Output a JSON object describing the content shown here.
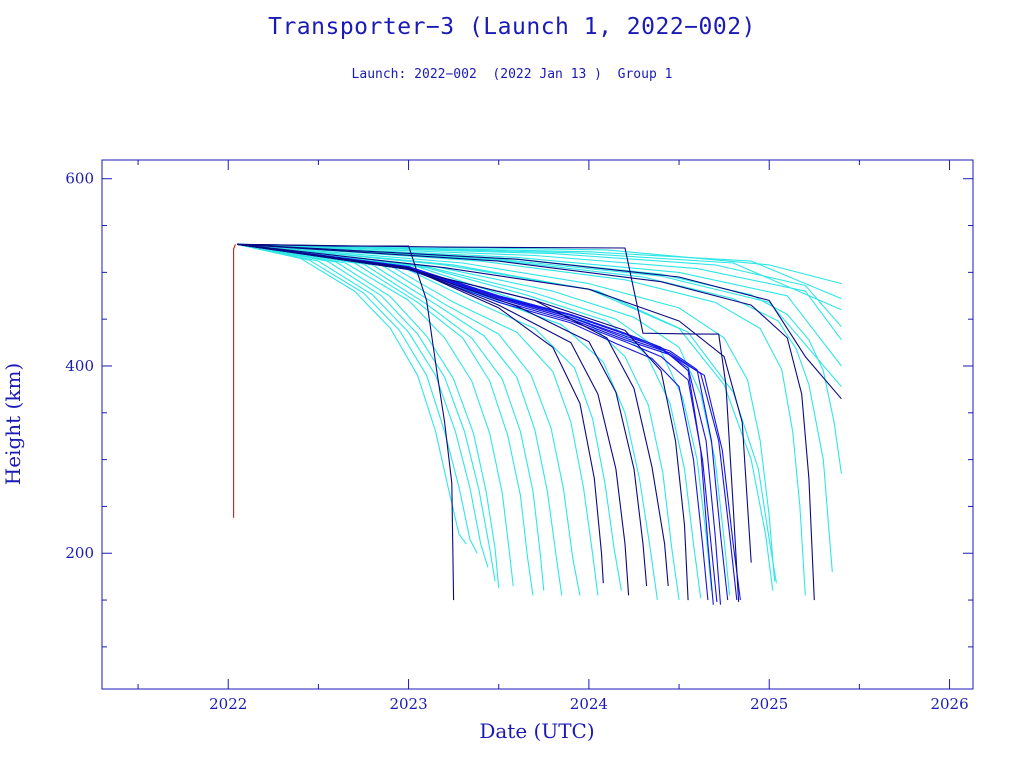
{
  "chart_data": {
    "type": "line",
    "title": "Transporter−3 (Launch 1, 2022−002)",
    "subtitle": "Launch: 2022−002  (2022 Jan 13 )  Group 1",
    "xlabel": "Date (UTC)",
    "ylabel": "Height (km)",
    "xlim": [
      2021.3,
      2026.13
    ],
    "ylim": [
      55,
      620
    ],
    "x_ticks": [
      2022,
      2023,
      2024,
      2025,
      2026
    ],
    "y_ticks": [
      200,
      400,
      600
    ],
    "x_tick_labels": [
      "2022",
      "2023",
      "2024",
      "2025",
      "2026"
    ],
    "y_tick_labels": [
      "200",
      "400",
      "600"
    ],
    "grid": false,
    "colors": {
      "frame": "#1a1ab4",
      "text": "#1a1ab4",
      "deployment": "#c81e1e",
      "group_light": "#2ee6e6",
      "group_dark": "#0a0a82",
      "group_blue": "#1414e6"
    },
    "series": [
      {
        "color": "#c81e1e",
        "x": [
          2022.03,
          2022.03,
          2022.04
        ],
        "y": [
          238,
          525,
          530
        ]
      },
      {
        "color": "#2ee6e6",
        "x": [
          2022.05,
          2022.4,
          2022.7,
          2022.9,
          2023.05,
          2023.15,
          2023.22,
          2023.28,
          2023.32
        ],
        "y": [
          530,
          515,
          480,
          440,
          390,
          330,
          270,
          220,
          210
        ]
      },
      {
        "color": "#2ee6e6",
        "x": [
          2022.05,
          2022.45,
          2022.75,
          2022.95,
          2023.1,
          2023.2,
          2023.28,
          2023.34,
          2023.38
        ],
        "y": [
          530,
          513,
          478,
          438,
          390,
          330,
          270,
          215,
          200
        ]
      },
      {
        "color": "#2ee6e6",
        "x": [
          2022.05,
          2022.5,
          2022.8,
          2023.0,
          2023.15,
          2023.26,
          2023.34,
          2023.4,
          2023.44
        ],
        "y": [
          530,
          512,
          476,
          436,
          390,
          330,
          270,
          210,
          185
        ]
      },
      {
        "color": "#2ee6e6",
        "x": [
          2022.05,
          2022.55,
          2022.85,
          2023.05,
          2023.2,
          2023.31,
          2023.39,
          2023.45,
          2023.48
        ],
        "y": [
          530,
          512,
          475,
          434,
          388,
          330,
          268,
          205,
          170
        ]
      },
      {
        "color": "#2ee6e6",
        "x": [
          2022.05,
          2022.6,
          2022.9,
          2023.1,
          2023.25,
          2023.36,
          2023.43,
          2023.48,
          2023.5
        ],
        "y": [
          530,
          511,
          474,
          432,
          386,
          328,
          266,
          205,
          163
        ]
      },
      {
        "color": "#2ee6e6",
        "x": [
          2022.05,
          2022.65,
          2023.0,
          2023.2,
          2023.35,
          2023.45,
          2023.52,
          2023.56,
          2023.58
        ],
        "y": [
          530,
          510,
          470,
          430,
          384,
          328,
          264,
          200,
          165
        ]
      },
      {
        "color": "#2ee6e6",
        "x": [
          2022.05,
          2022.7,
          2023.05,
          2023.3,
          2023.45,
          2023.55,
          2023.62,
          2023.66,
          2023.69
        ],
        "y": [
          530,
          510,
          468,
          430,
          384,
          326,
          262,
          195,
          155
        ]
      },
      {
        "color": "#2ee6e6",
        "x": [
          2022.05,
          2022.75,
          2023.1,
          2023.35,
          2023.52,
          2023.62,
          2023.69,
          2023.73,
          2023.75
        ],
        "y": [
          530,
          509,
          466,
          430,
          386,
          330,
          266,
          200,
          160
        ]
      },
      {
        "color": "#2ee6e6",
        "x": [
          2022.05,
          2022.8,
          2023.15,
          2023.42,
          2023.6,
          2023.7,
          2023.77,
          2023.82,
          2023.85
        ],
        "y": [
          530,
          508,
          466,
          432,
          388,
          332,
          266,
          195,
          155
        ]
      },
      {
        "color": "#2ee6e6",
        "x": [
          2022.05,
          2022.85,
          2023.2,
          2023.5,
          2023.68,
          2023.79,
          2023.86,
          2023.91,
          2023.95
        ],
        "y": [
          530,
          508,
          466,
          434,
          390,
          334,
          268,
          195,
          155
        ]
      },
      {
        "color": "#2ee6e6",
        "x": [
          2022.05,
          2022.9,
          2023.25,
          2023.6,
          2023.8,
          2023.9,
          2023.97,
          2024.02,
          2024.05
        ],
        "y": [
          530,
          507,
          468,
          436,
          394,
          340,
          270,
          200,
          155
        ]
      },
      {
        "color": "#2ee6e6",
        "x": [
          2022.05,
          2022.95,
          2023.35,
          2023.7,
          2023.92,
          2024.02,
          2024.09,
          2024.14,
          2024.18
        ],
        "y": [
          530,
          507,
          470,
          440,
          398,
          344,
          274,
          205,
          160
        ]
      },
      {
        "color": "#2ee6e6",
        "x": [
          2022.05,
          2023.0,
          2023.45,
          2023.85,
          2024.08,
          2024.2,
          2024.28,
          2024.34,
          2024.38
        ],
        "y": [
          530,
          506,
          472,
          444,
          404,
          350,
          280,
          205,
          150
        ]
      },
      {
        "color": "#2ee6e6",
        "x": [
          2022.05,
          2023.05,
          2023.55,
          2024.0,
          2024.2,
          2024.33,
          2024.41,
          2024.46,
          2024.5
        ],
        "y": [
          530,
          506,
          474,
          446,
          410,
          358,
          286,
          205,
          150
        ]
      },
      {
        "color": "#2ee6e6",
        "x": [
          2022.05,
          2023.1,
          2023.65,
          2024.1,
          2024.32,
          2024.45,
          2024.53,
          2024.58,
          2024.62
        ],
        "y": [
          530,
          505,
          476,
          448,
          412,
          360,
          290,
          210,
          152
        ]
      },
      {
        "color": "#2ee6e6",
        "x": [
          2022.05,
          2023.1,
          2023.7,
          2024.15,
          2024.4,
          2024.52,
          2024.6,
          2024.65,
          2024.68
        ],
        "y": [
          530,
          506,
          478,
          450,
          416,
          366,
          300,
          220,
          160
        ]
      },
      {
        "color": "#2ee6e6",
        "x": [
          2022.05,
          2023.15,
          2023.8,
          2024.25,
          2024.5,
          2024.62,
          2024.7,
          2024.75,
          2024.78
        ],
        "y": [
          530,
          506,
          480,
          452,
          420,
          370,
          300,
          215,
          155
        ]
      },
      {
        "color": "#2ee6e6",
        "x": [
          2022.05,
          2023.3,
          2024.0,
          2024.5,
          2024.75,
          2024.88,
          2024.95,
          2025.0,
          2025.03
        ],
        "y": [
          530,
          510,
          488,
          462,
          430,
          385,
          320,
          240,
          170
        ]
      },
      {
        "color": "#2ee6e6",
        "x": [
          2022.05,
          2023.4,
          2024.2,
          2024.7,
          2024.95,
          2025.07,
          2025.13,
          2025.17,
          2025.2
        ],
        "y": [
          530,
          512,
          492,
          468,
          440,
          396,
          330,
          250,
          155
        ]
      },
      {
        "color": "#2ee6e6",
        "x": [
          2022.05,
          2023.5,
          2024.3,
          2024.8,
          2025.05,
          2025.15,
          2025.22,
          2025.3,
          2025.35
        ],
        "y": [
          530,
          513,
          495,
          472,
          448,
          418,
          380,
          300,
          180
        ]
      },
      {
        "color": "#2ee6e6",
        "x": [
          2022.05,
          2023.6,
          2024.4,
          2024.9,
          2025.1,
          2025.22,
          2025.3,
          2025.36,
          2025.4
        ],
        "y": [
          530,
          514,
          498,
          476,
          455,
          428,
          395,
          340,
          285
        ]
      },
      {
        "color": "#2ee6e6",
        "x": [
          2022.05,
          2023.5,
          2024.4,
          2025.0,
          2025.4
        ],
        "y": [
          530,
          514,
          496,
          468,
          378
        ]
      },
      {
        "color": "#2ee6e6",
        "x": [
          2022.05,
          2023.6,
          2024.5,
          2025.1,
          2025.4
        ],
        "y": [
          530,
          516,
          500,
          475,
          400
        ]
      },
      {
        "color": "#2ee6e6",
        "x": [
          2022.05,
          2023.7,
          2024.6,
          2025.2,
          2025.4
        ],
        "y": [
          530,
          518,
          504,
          480,
          428
        ]
      },
      {
        "color": "#2ee6e6",
        "x": [
          2022.05,
          2023.8,
          2024.7,
          2025.2,
          2025.4
        ],
        "y": [
          530,
          520,
          508,
          486,
          442
        ]
      },
      {
        "color": "#2ee6e6",
        "x": [
          2022.05,
          2023.9,
          2024.8,
          2025.4
        ],
        "y": [
          530,
          521,
          510,
          460
        ]
      },
      {
        "color": "#2ee6e6",
        "x": [
          2022.05,
          2024.0,
          2024.9,
          2025.4
        ],
        "y": [
          530,
          522,
          512,
          472
        ]
      },
      {
        "color": "#2ee6e6",
        "x": [
          2022.05,
          2024.1,
          2025.0,
          2025.4
        ],
        "y": [
          530,
          524,
          508,
          488
        ]
      },
      {
        "color": "#2ee6e6",
        "x": [
          2022.05,
          2023.2,
          2024.0,
          2024.5,
          2024.75,
          2024.9,
          2024.98,
          2025.02
        ],
        "y": [
          530,
          508,
          482,
          440,
          380,
          300,
          220,
          160
        ]
      },
      {
        "color": "#2ee6e6",
        "x": [
          2022.05,
          2023.25,
          2024.05,
          2024.55,
          2024.8,
          2024.94,
          2025.0,
          2025.04
        ],
        "y": [
          530,
          508,
          480,
          436,
          372,
          290,
          215,
          168
        ]
      },
      {
        "color": "#1414e6",
        "x": [
          2022.05,
          2023.0,
          2023.5,
          2023.9,
          2024.2,
          2024.4,
          2024.55,
          2024.62,
          2024.66,
          2024.69
        ],
        "y": [
          530,
          506,
          475,
          455,
          435,
          420,
          395,
          310,
          210,
          145
        ]
      },
      {
        "color": "#1414e6",
        "x": [
          2022.05,
          2023.0,
          2023.5,
          2023.9,
          2024.2,
          2024.4,
          2024.55,
          2024.65,
          2024.7,
          2024.73
        ],
        "y": [
          530,
          506,
          474,
          454,
          434,
          418,
          398,
          320,
          220,
          145
        ]
      },
      {
        "color": "#1414e6",
        "x": [
          2022.05,
          2023.0,
          2023.5,
          2023.9,
          2024.2,
          2024.45,
          2024.6,
          2024.68,
          2024.73,
          2024.77
        ],
        "y": [
          530,
          505,
          474,
          452,
          432,
          416,
          396,
          320,
          220,
          150
        ]
      },
      {
        "color": "#1414e6",
        "x": [
          2022.05,
          2023.0,
          2023.5,
          2023.9,
          2024.2,
          2024.45,
          2024.62,
          2024.72,
          2024.78,
          2024.82
        ],
        "y": [
          530,
          505,
          473,
          452,
          430,
          414,
          392,
          320,
          220,
          150
        ]
      },
      {
        "color": "#1414e6",
        "x": [
          2022.05,
          2023.0,
          2023.5,
          2023.9,
          2024.2,
          2024.45,
          2024.64,
          2024.74,
          2024.8,
          2024.84
        ],
        "y": [
          530,
          504,
          472,
          450,
          428,
          412,
          390,
          310,
          210,
          150
        ]
      },
      {
        "color": "#1414e6",
        "x": [
          2022.05,
          2023.0,
          2023.5,
          2023.9,
          2024.2,
          2024.4,
          2024.55,
          2024.63,
          2024.68,
          2024.71
        ],
        "y": [
          530,
          504,
          470,
          448,
          426,
          410,
          385,
          300,
          205,
          148
        ]
      },
      {
        "color": "#1414e6",
        "x": [
          2022.05,
          2023.0,
          2023.5,
          2023.9,
          2024.15,
          2024.35,
          2024.5,
          2024.58,
          2024.63,
          2024.66
        ],
        "y": [
          530,
          503,
          468,
          446,
          424,
          408,
          378,
          300,
          210,
          150
        ]
      },
      {
        "color": "#0a0a82",
        "x": [
          2022.05,
          2022.6,
          2023.0,
          2023.1,
          2023.16,
          2023.2,
          2023.24,
          2023.25
        ],
        "y": [
          530,
          528,
          528,
          470,
          390,
          340,
          275,
          150
        ]
      },
      {
        "color": "#0a0a82",
        "x": [
          2022.05,
          2023.2,
          2024.2,
          2024.3,
          2024.6,
          2024.72,
          2024.76,
          2024.8,
          2024.83
        ],
        "y": [
          530,
          527,
          526,
          435,
          434,
          434,
          380,
          250,
          148
        ]
      },
      {
        "color": "#0a0a82",
        "x": [
          2022.05,
          2023.0,
          2023.5,
          2023.9,
          2024.05,
          2024.15,
          2024.2,
          2024.22
        ],
        "y": [
          530,
          505,
          465,
          425,
          370,
          290,
          210,
          155
        ]
      },
      {
        "color": "#0a0a82",
        "x": [
          2022.05,
          2023.0,
          2023.6,
          2024.0,
          2024.15,
          2024.25,
          2024.3,
          2024.32
        ],
        "y": [
          530,
          504,
          464,
          426,
          372,
          290,
          210,
          165
        ]
      },
      {
        "color": "#0a0a82",
        "x": [
          2022.05,
          2023.0,
          2023.7,
          2024.1,
          2024.25,
          2024.35,
          2024.42,
          2024.44
        ],
        "y": [
          530,
          503,
          470,
          430,
          376,
          292,
          210,
          165
        ]
      },
      {
        "color": "#0a0a82",
        "x": [
          2022.05,
          2023.0,
          2023.5,
          2023.8,
          2023.95,
          2024.03,
          2024.07,
          2024.08
        ],
        "y": [
          530,
          505,
          462,
          420,
          360,
          280,
          200,
          168
        ]
      },
      {
        "color": "#0a0a82",
        "x": [
          2022.05,
          2023.0,
          2023.7,
          2024.2,
          2024.4,
          2024.48,
          2024.53,
          2024.55
        ],
        "y": [
          530,
          503,
          470,
          438,
          395,
          320,
          230,
          150
        ]
      },
      {
        "color": "#0a0a82",
        "x": [
          2022.05,
          2023.2,
          2024.0,
          2024.5,
          2024.75,
          2024.85,
          2024.88,
          2024.9
        ],
        "y": [
          530,
          505,
          482,
          448,
          410,
          340,
          250,
          190
        ]
      },
      {
        "color": "#0a0a82",
        "x": [
          2022.05,
          2023.5,
          2024.4,
          2024.9,
          2025.1,
          2025.18,
          2025.22,
          2025.25
        ],
        "y": [
          530,
          512,
          490,
          465,
          430,
          370,
          280,
          150
        ]
      },
      {
        "color": "#0a0a82",
        "x": [
          2022.05,
          2023.6,
          2024.5,
          2025.0,
          2025.2,
          2025.4
        ],
        "y": [
          530,
          514,
          495,
          470,
          410,
          365
        ]
      }
    ]
  }
}
